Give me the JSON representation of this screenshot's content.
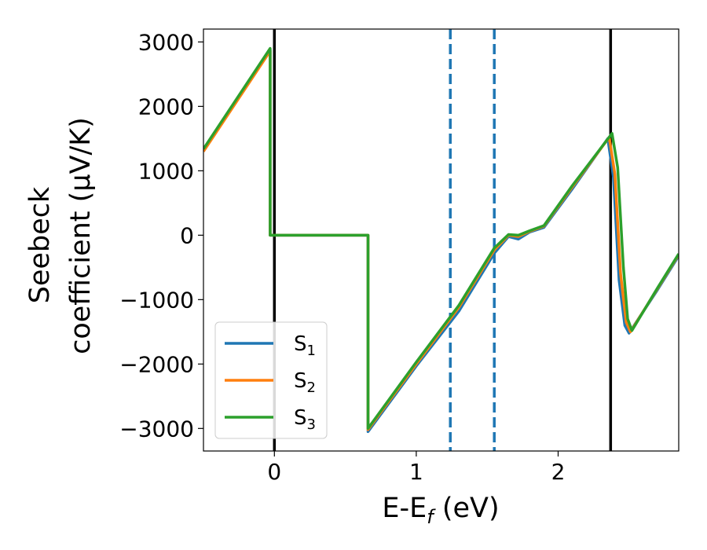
{
  "chart_data": {
    "type": "line",
    "title": "",
    "xlabel_parts": [
      "E-E",
      "f",
      " (eV)"
    ],
    "ylabel_lines": [
      "Seebeck",
      "coefficient  (μV/K)"
    ],
    "xlim": [
      -0.5,
      2.85
    ],
    "ylim": [
      -3350,
      3200
    ],
    "xticks": [
      0,
      1,
      2
    ],
    "xtick_labels": [
      "0",
      "1",
      "2"
    ],
    "yticks": [
      3000,
      2000,
      1000,
      0,
      -1000,
      -2000,
      -3000
    ],
    "ytick_labels": [
      "3000",
      "2000",
      "1000",
      "0",
      "−1000",
      "−2000",
      "−3000"
    ],
    "grid": false,
    "legend_position": "lower-left",
    "vlines_solid": [
      0.0,
      2.37
    ],
    "vlines_dashed": [
      1.24,
      1.55
    ],
    "vline_colors": {
      "solid": "#000000",
      "dashed": "#1f77b4"
    },
    "series": [
      {
        "name_base": "S",
        "name_sub": "1",
        "color": "#1f77b4",
        "x": [
          -0.5,
          -0.03,
          -0.03,
          0.66,
          0.66,
          1.0,
          1.3,
          1.55,
          1.65,
          1.72,
          1.8,
          1.9,
          2.1,
          2.35,
          2.39,
          2.43,
          2.47,
          2.5,
          2.7,
          2.85
        ],
        "y": [
          1330,
          2880,
          0,
          0,
          -3050,
          -2030,
          -1180,
          -280,
          -20,
          -60,
          50,
          120,
          720,
          1500,
          900,
          -700,
          -1400,
          -1520,
          -850,
          -320
        ]
      },
      {
        "name_base": "S",
        "name_sub": "2",
        "color": "#ff7f0e",
        "x": [
          -0.5,
          -0.03,
          -0.03,
          0.66,
          0.66,
          1.0,
          1.3,
          1.55,
          1.65,
          1.72,
          1.8,
          1.9,
          2.1,
          2.36,
          2.4,
          2.44,
          2.48,
          2.51,
          2.7,
          2.85
        ],
        "y": [
          1300,
          2860,
          0,
          0,
          -3020,
          -2000,
          -1120,
          -230,
          0,
          -20,
          60,
          140,
          750,
          1520,
          950,
          -600,
          -1350,
          -1500,
          -830,
          -300
        ]
      },
      {
        "name_base": "S",
        "name_sub": "3",
        "color": "#2ca02c",
        "x": [
          -0.5,
          -0.03,
          -0.03,
          0.66,
          0.66,
          1.0,
          1.3,
          1.55,
          1.65,
          1.72,
          1.8,
          1.9,
          2.1,
          2.38,
          2.42,
          2.46,
          2.49,
          2.52,
          2.7,
          2.85
        ],
        "y": [
          1340,
          2900,
          0,
          0,
          -3000,
          -1970,
          -1090,
          -200,
          10,
          0,
          70,
          150,
          770,
          1580,
          1050,
          -500,
          -1300,
          -1480,
          -820,
          -290
        ]
      }
    ]
  }
}
